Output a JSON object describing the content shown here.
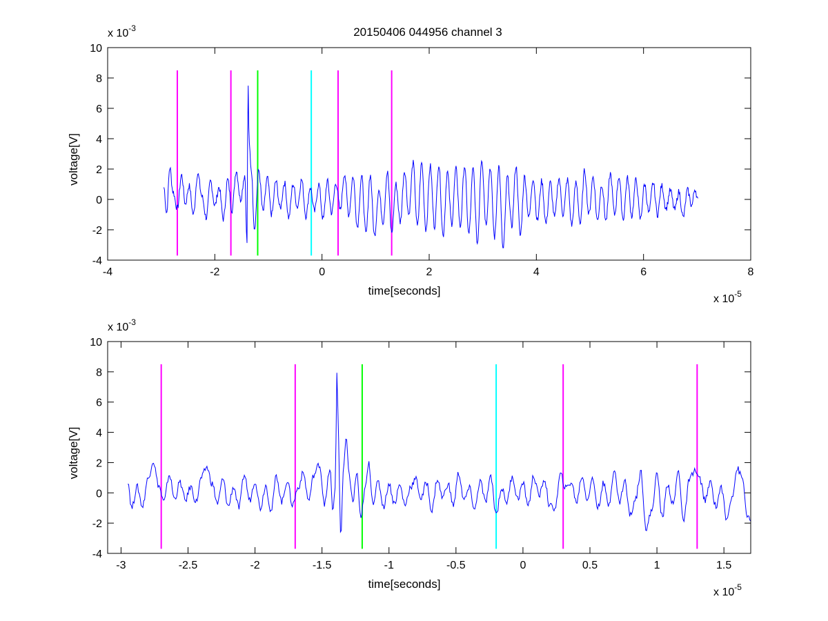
{
  "figure_title": "20150406 044956 channel 3",
  "colors": {
    "signal": "#0000ff",
    "magenta": "#ff00ff",
    "green": "#00ff00",
    "cyan": "#00ffff",
    "axis": "#000000"
  },
  "chart_data": [
    {
      "type": "line",
      "title": "20150406 044956 channel 3",
      "xlabel": "time[seconds]",
      "ylabel": "voltage[V]",
      "x_multiplier": "x 10",
      "x_exponent": "-5",
      "y_multiplier": "x 10",
      "y_exponent": "-3",
      "xlim": [
        -4,
        8
      ],
      "ylim": [
        -4,
        10
      ],
      "xticks": [
        -4,
        -2,
        0,
        2,
        4,
        6,
        8
      ],
      "xtick_labels": [
        "-4",
        "-2",
        "0",
        "2",
        "4",
        "6",
        "8"
      ],
      "yticks": [
        -4,
        -2,
        0,
        2,
        4,
        6,
        8,
        10
      ],
      "ytick_labels": [
        "-4",
        "-2",
        "0",
        "2",
        "4",
        "6",
        "8",
        "10"
      ],
      "signal_range": [
        -2.95,
        7.02
      ],
      "signal_points": [
        [
          -2.95,
          0.8
        ],
        [
          -2.9,
          -0.9
        ],
        [
          -2.84,
          2.1
        ],
        [
          -2.78,
          0.5
        ],
        [
          -2.7,
          -0.6
        ],
        [
          -2.62,
          1.6
        ],
        [
          -2.55,
          -0.3
        ],
        [
          -2.48,
          0.9
        ],
        [
          -2.4,
          -1.0
        ],
        [
          -2.32,
          1.7
        ],
        [
          -2.24,
          0.2
        ],
        [
          -2.16,
          -1.2
        ],
        [
          -2.08,
          1.2
        ],
        [
          -2.0,
          -0.4
        ],
        [
          -1.92,
          0.8
        ],
        [
          -1.84,
          -1.3
        ],
        [
          -1.76,
          1.3
        ],
        [
          -1.68,
          -0.7
        ],
        [
          -1.6,
          1.9
        ],
        [
          -1.52,
          0.0
        ],
        [
          -1.44,
          1.6
        ],
        [
          -1.4,
          -2.9
        ],
        [
          -1.38,
          7.8
        ],
        [
          -1.36,
          3.7
        ],
        [
          -1.32,
          2.0
        ],
        [
          -1.26,
          -1.9
        ],
        [
          -1.18,
          1.9
        ],
        [
          -1.1,
          -0.8
        ],
        [
          -1.02,
          1.4
        ],
        [
          -0.94,
          -1.0
        ],
        [
          -0.86,
          1.2
        ],
        [
          -0.78,
          -0.6
        ],
        [
          -0.7,
          1.1
        ],
        [
          -0.62,
          -1.2
        ],
        [
          -0.54,
          1.0
        ],
        [
          -0.46,
          -0.5
        ],
        [
          -0.38,
          1.3
        ],
        [
          -0.3,
          -1.1
        ],
        [
          -0.22,
          0.8
        ],
        [
          -0.14,
          -0.8
        ],
        [
          -0.06,
          1.0
        ],
        [
          0.02,
          -1.3
        ],
        [
          0.1,
          1.2
        ],
        [
          0.18,
          -0.9
        ],
        [
          0.26,
          1.1
        ],
        [
          0.34,
          -0.7
        ],
        [
          0.42,
          1.7
        ],
        [
          0.5,
          -1.0
        ],
        [
          0.58,
          1.5
        ],
        [
          0.66,
          -1.8
        ],
        [
          0.74,
          1.5
        ],
        [
          0.82,
          -2.3
        ],
        [
          0.9,
          1.6
        ],
        [
          0.98,
          -2.4
        ],
        [
          1.06,
          0.6
        ],
        [
          1.14,
          -1.5
        ],
        [
          1.22,
          1.8
        ],
        [
          1.3,
          -2.2
        ],
        [
          1.38,
          1.0
        ],
        [
          1.46,
          -1.5
        ],
        [
          1.54,
          1.9
        ],
        [
          1.62,
          -1.0
        ],
        [
          1.7,
          2.4
        ],
        [
          1.78,
          -1.8
        ],
        [
          1.86,
          2.4
        ],
        [
          1.94,
          -2.0
        ],
        [
          2.02,
          2.2
        ],
        [
          2.1,
          -1.8
        ],
        [
          2.18,
          2.3
        ],
        [
          2.26,
          -2.4
        ],
        [
          2.34,
          1.8
        ],
        [
          2.42,
          -1.6
        ],
        [
          2.5,
          2.0
        ],
        [
          2.58,
          -1.8
        ],
        [
          2.66,
          2.2
        ],
        [
          2.74,
          -2.3
        ],
        [
          2.82,
          2.0
        ],
        [
          2.9,
          -2.9
        ],
        [
          2.98,
          2.7
        ],
        [
          3.06,
          -1.6
        ],
        [
          3.14,
          2.1
        ],
        [
          3.22,
          -2.5
        ],
        [
          3.3,
          2.2
        ],
        [
          3.38,
          -3.3
        ],
        [
          3.46,
          1.5
        ],
        [
          3.54,
          -1.8
        ],
        [
          3.62,
          2.2
        ],
        [
          3.7,
          -2.4
        ],
        [
          3.78,
          1.5
        ],
        [
          3.86,
          -1.2
        ],
        [
          3.94,
          1.4
        ],
        [
          4.02,
          -1.4
        ],
        [
          4.1,
          1.2
        ],
        [
          4.18,
          -1.6
        ],
        [
          4.26,
          1.1
        ],
        [
          4.34,
          -1.2
        ],
        [
          4.42,
          1.4
        ],
        [
          4.5,
          -1.0
        ],
        [
          4.58,
          1.3
        ],
        [
          4.66,
          -1.7
        ],
        [
          4.74,
          1.1
        ],
        [
          4.82,
          -1.6
        ],
        [
          4.9,
          1.9
        ],
        [
          4.98,
          -1.0
        ],
        [
          5.06,
          1.5
        ],
        [
          5.14,
          -1.4
        ],
        [
          5.22,
          1.0
        ],
        [
          5.3,
          -1.4
        ],
        [
          5.38,
          1.7
        ],
        [
          5.46,
          -1.0
        ],
        [
          5.54,
          1.5
        ],
        [
          5.62,
          -1.3
        ],
        [
          5.7,
          1.4
        ],
        [
          5.78,
          -1.1
        ],
        [
          5.86,
          1.3
        ],
        [
          5.94,
          -1.3
        ],
        [
          6.02,
          1.0
        ],
        [
          6.1,
          -0.9
        ],
        [
          6.18,
          1.1
        ],
        [
          6.26,
          -1.0
        ],
        [
          6.34,
          0.9
        ],
        [
          6.42,
          -0.6
        ],
        [
          6.5,
          0.6
        ],
        [
          6.58,
          -0.7
        ],
        [
          6.66,
          0.5
        ],
        [
          6.74,
          -1.2
        ],
        [
          6.82,
          0.6
        ],
        [
          6.9,
          -0.4
        ],
        [
          6.96,
          0.7
        ],
        [
          7.02,
          -0.1
        ]
      ],
      "markers": [
        {
          "x": -2.7,
          "color": "magenta",
          "y_top": 8.5,
          "y_bottom": -3.7
        },
        {
          "x": -1.7,
          "color": "magenta",
          "y_top": 8.5,
          "y_bottom": -3.7
        },
        {
          "x": -1.2,
          "color": "green",
          "y_top": 8.5,
          "y_bottom": -3.7
        },
        {
          "x": -0.2,
          "color": "cyan",
          "y_top": 8.5,
          "y_bottom": -3.7
        },
        {
          "x": 0.3,
          "color": "magenta",
          "y_top": 8.5,
          "y_bottom": -3.7
        },
        {
          "x": 1.3,
          "color": "magenta",
          "y_top": 8.5,
          "y_bottom": -3.7
        }
      ]
    },
    {
      "type": "line",
      "title": "",
      "xlabel": "time[seconds]",
      "ylabel": "voltage[V]",
      "x_multiplier": "x 10",
      "x_exponent": "-5",
      "y_multiplier": "x 10",
      "y_exponent": "-3",
      "xlim": [
        -3.1,
        1.7
      ],
      "ylim": [
        -4,
        10
      ],
      "xticks": [
        -3,
        -2.5,
        -2,
        -1.5,
        -1,
        -0.5,
        0,
        0.5,
        1,
        1.5
      ],
      "xtick_labels": [
        "-3",
        "-2.5",
        "-2",
        "-1.5",
        "-1",
        "-0.5",
        "0",
        "0.5",
        "1",
        "1.5"
      ],
      "yticks": [
        -4,
        -2,
        0,
        2,
        4,
        6,
        8,
        10
      ],
      "ytick_labels": [
        "-4",
        "-2",
        "0",
        "2",
        "4",
        "6",
        "8",
        "10"
      ],
      "signal_range": [
        -2.95,
        1.7
      ],
      "signal_points": [
        [
          -2.95,
          0.8
        ],
        [
          -2.92,
          -1.0
        ],
        [
          -2.88,
          0.4
        ],
        [
          -2.84,
          -0.9
        ],
        [
          -2.8,
          0.9
        ],
        [
          -2.76,
          2.1
        ],
        [
          -2.72,
          0.5
        ],
        [
          -2.68,
          -0.6
        ],
        [
          -2.64,
          1.2
        ],
        [
          -2.6,
          -0.4
        ],
        [
          -2.56,
          0.7
        ],
        [
          -2.52,
          -0.5
        ],
        [
          -2.48,
          0.4
        ],
        [
          -2.44,
          -0.6
        ],
        [
          -2.4,
          1.0
        ],
        [
          -2.36,
          1.7
        ],
        [
          -2.32,
          0.6
        ],
        [
          -2.28,
          -0.7
        ],
        [
          -2.24,
          0.9
        ],
        [
          -2.2,
          -0.9
        ],
        [
          -2.16,
          0.4
        ],
        [
          -2.12,
          -1.0
        ],
        [
          -2.08,
          1.2
        ],
        [
          -2.04,
          -0.5
        ],
        [
          -2.0,
          0.8
        ],
        [
          -1.96,
          -1.0
        ],
        [
          -1.92,
          0.5
        ],
        [
          -1.88,
          -1.2
        ],
        [
          -1.84,
          1.1
        ],
        [
          -1.8,
          -0.6
        ],
        [
          -1.76,
          0.8
        ],
        [
          -1.72,
          -0.8
        ],
        [
          -1.68,
          0.3
        ],
        [
          -1.64,
          1.3
        ],
        [
          -1.6,
          -0.5
        ],
        [
          -1.56,
          1.2
        ],
        [
          -1.52,
          1.9
        ],
        [
          -1.48,
          -0.7
        ],
        [
          -1.44,
          1.6
        ],
        [
          -1.42,
          -1.3
        ],
        [
          -1.4,
          0.5
        ],
        [
          -1.39,
          7.8
        ],
        [
          -1.38,
          5.6
        ],
        [
          -1.37,
          0.3
        ],
        [
          -1.36,
          -2.9
        ],
        [
          -1.34,
          1.5
        ],
        [
          -1.32,
          3.6
        ],
        [
          -1.3,
          1.4
        ],
        [
          -1.27,
          -0.6
        ],
        [
          -1.24,
          1.3
        ],
        [
          -1.21,
          -1.8
        ],
        [
          -1.18,
          0.2
        ],
        [
          -1.15,
          1.9
        ],
        [
          -1.12,
          -0.6
        ],
        [
          -1.08,
          0.7
        ],
        [
          -1.04,
          -0.9
        ],
        [
          -1.0,
          0.6
        ],
        [
          -0.96,
          -0.7
        ],
        [
          -0.92,
          0.5
        ],
        [
          -0.88,
          -0.8
        ],
        [
          -0.84,
          0.4
        ],
        [
          -0.8,
          0.9
        ],
        [
          -0.76,
          -0.4
        ],
        [
          -0.72,
          0.7
        ],
        [
          -0.68,
          -1.2
        ],
        [
          -0.64,
          0.9
        ],
        [
          -0.6,
          -0.3
        ],
        [
          -0.56,
          0.6
        ],
        [
          -0.52,
          -0.8
        ],
        [
          -0.48,
          1.3
        ],
        [
          -0.44,
          -0.5
        ],
        [
          -0.4,
          0.3
        ],
        [
          -0.36,
          -1.1
        ],
        [
          -0.32,
          0.8
        ],
        [
          -0.28,
          -0.6
        ],
        [
          -0.24,
          1.0
        ],
        [
          -0.2,
          -1.4
        ],
        [
          -0.16,
          0.3
        ],
        [
          -0.12,
          -0.6
        ],
        [
          -0.08,
          1.1
        ],
        [
          -0.04,
          -0.4
        ],
        [
          0.0,
          0.6
        ],
        [
          0.04,
          -0.8
        ],
        [
          0.08,
          1.1
        ],
        [
          0.12,
          -0.2
        ],
        [
          0.16,
          0.9
        ],
        [
          0.2,
          -0.9
        ],
        [
          0.24,
          -1.0
        ],
        [
          0.28,
          1.2
        ],
        [
          0.32,
          0.3
        ],
        [
          0.36,
          0.7
        ],
        [
          0.4,
          -0.6
        ],
        [
          0.44,
          1.1
        ],
        [
          0.48,
          -0.4
        ],
        [
          0.52,
          0.9
        ],
        [
          0.56,
          -1.0
        ],
        [
          0.6,
          0.6
        ],
        [
          0.64,
          -0.8
        ],
        [
          0.68,
          1.5
        ],
        [
          0.72,
          -0.6
        ],
        [
          0.76,
          0.8
        ],
        [
          0.8,
          -1.5
        ],
        [
          0.84,
          -0.4
        ],
        [
          0.88,
          1.4
        ],
        [
          0.92,
          -2.4
        ],
        [
          0.96,
          -1.2
        ],
        [
          1.0,
          1.2
        ],
        [
          1.04,
          -1.6
        ],
        [
          1.08,
          0.6
        ],
        [
          1.12,
          -0.8
        ],
        [
          1.16,
          1.4
        ],
        [
          1.2,
          -1.9
        ],
        [
          1.24,
          0.8
        ],
        [
          1.28,
          1.5
        ],
        [
          1.32,
          0.9
        ],
        [
          1.36,
          -0.5
        ],
        [
          1.4,
          0.7
        ],
        [
          1.44,
          -0.9
        ],
        [
          1.48,
          0.4
        ],
        [
          1.52,
          -1.8
        ],
        [
          1.56,
          -0.2
        ],
        [
          1.6,
          1.6
        ],
        [
          1.64,
          0.9
        ],
        [
          1.67,
          -1.4
        ],
        [
          1.7,
          -2.0
        ]
      ],
      "markers": [
        {
          "x": -2.7,
          "color": "magenta",
          "y_top": 8.5,
          "y_bottom": -3.7
        },
        {
          "x": -1.7,
          "color": "magenta",
          "y_top": 8.5,
          "y_bottom": -3.7
        },
        {
          "x": -1.2,
          "color": "green",
          "y_top": 8.5,
          "y_bottom": -3.7
        },
        {
          "x": -0.2,
          "color": "cyan",
          "y_top": 8.5,
          "y_bottom": -3.7
        },
        {
          "x": 0.3,
          "color": "magenta",
          "y_top": 8.5,
          "y_bottom": -3.7
        },
        {
          "x": 1.3,
          "color": "magenta",
          "y_top": 8.5,
          "y_bottom": -3.7
        }
      ]
    }
  ]
}
